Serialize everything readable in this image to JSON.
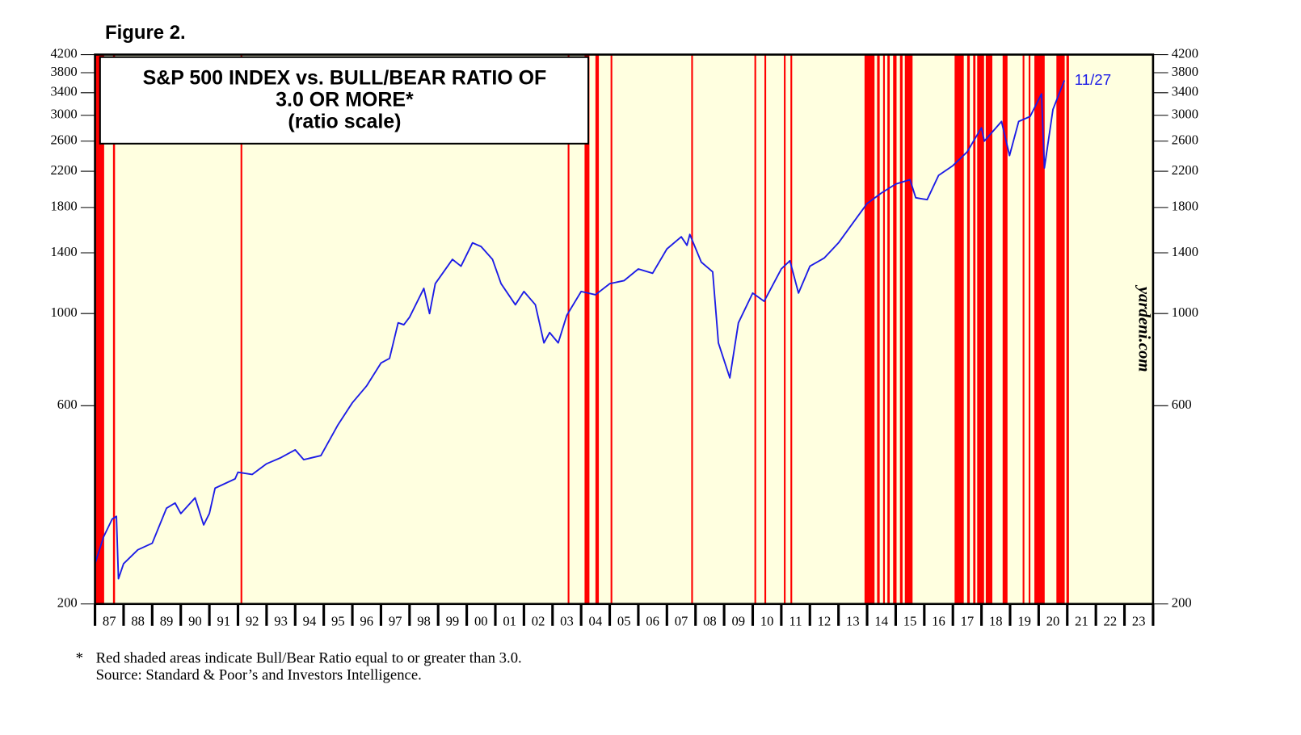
{
  "chart_data": {
    "type": "line",
    "figure_label": "Figure 2.",
    "title": [
      "S&P 500 INDEX vs. BULL/BEAR RATIO OF",
      "3.0 OR MORE*",
      "(ratio scale)"
    ],
    "annotation": "11/27",
    "watermark": "yardeni.com",
    "footnote_marker": "*",
    "footnotes": [
      "Red shaded areas indicate Bull/Bear Ratio equal to or greater than 3.0.",
      "Source: Standard & Poor’s and Investors Intelligence."
    ],
    "log_scale": true,
    "background": "#ffffe0",
    "shade_color": "#ff0000",
    "ylim": [
      200,
      4200
    ],
    "yticks": [
      200,
      600,
      1000,
      1400,
      1800,
      2200,
      2600,
      3000,
      3400,
      3800,
      4200
    ],
    "xlim": [
      1987,
      2024
    ],
    "xticks": [
      1987,
      1988,
      1989,
      1990,
      1991,
      1992,
      1993,
      1994,
      1995,
      1996,
      1997,
      1998,
      1999,
      2000,
      2001,
      2002,
      2003,
      2004,
      2005,
      2006,
      2007,
      2008,
      2009,
      2010,
      2011,
      2012,
      2013,
      2014,
      2015,
      2016,
      2017,
      2018,
      2019,
      2020,
      2021,
      2022,
      2023,
      2024
    ],
    "categories": [
      "87",
      "88",
      "89",
      "90",
      "91",
      "92",
      "93",
      "94",
      "95",
      "96",
      "97",
      "98",
      "99",
      "00",
      "01",
      "02",
      "03",
      "04",
      "05",
      "06",
      "07",
      "08",
      "09",
      "10",
      "11",
      "12",
      "13",
      "14",
      "15",
      "16",
      "17",
      "18",
      "19",
      "20",
      "21",
      "22",
      "23"
    ],
    "shaded": [
      [
        1987.0,
        1987.32
      ],
      [
        1987.63,
        1987.7
      ],
      [
        1992.09,
        1992.15
      ],
      [
        2003.53,
        2003.59
      ],
      [
        2004.12,
        2004.29
      ],
      [
        2004.5,
        2004.62
      ],
      [
        2005.03,
        2005.09
      ],
      [
        2007.85,
        2007.91
      ],
      [
        2010.06,
        2010.12
      ],
      [
        2010.41,
        2010.47
      ],
      [
        2011.09,
        2011.15
      ],
      [
        2011.32,
        2011.38
      ],
      [
        2013.91,
        2014.26
      ],
      [
        2014.35,
        2014.44
      ],
      [
        2014.56,
        2014.62
      ],
      [
        2014.71,
        2014.79
      ],
      [
        2014.91,
        2015.03
      ],
      [
        2015.15,
        2015.24
      ],
      [
        2015.32,
        2015.59
      ],
      [
        2017.06,
        2017.38
      ],
      [
        2017.5,
        2017.59
      ],
      [
        2017.71,
        2017.79
      ],
      [
        2017.85,
        2018.09
      ],
      [
        2018.15,
        2018.38
      ],
      [
        2018.74,
        2018.91
      ],
      [
        2019.44,
        2019.5
      ],
      [
        2019.65,
        2019.71
      ],
      [
        2019.85,
        2020.21
      ],
      [
        2020.62,
        2020.91
      ],
      [
        2020.97,
        2021.06
      ]
    ],
    "series": [
      {
        "name": "S&P 500 Index",
        "color": "#1c1ce6",
        "x": [
          1987.0,
          1987.3,
          1987.6,
          1987.75,
          1987.82,
          1988.0,
          1988.5,
          1989.0,
          1989.5,
          1989.8,
          1990.0,
          1990.5,
          1990.8,
          1991.0,
          1991.2,
          1991.9,
          1992.0,
          1992.5,
          1993.0,
          1993.5,
          1994.0,
          1994.3,
          1994.9,
          1995.5,
          1996.0,
          1996.5,
          1997.0,
          1997.3,
          1997.6,
          1997.8,
          1998.0,
          1998.5,
          1998.7,
          1998.9,
          1999.5,
          1999.8,
          2000.2,
          2000.5,
          2000.9,
          2001.2,
          2001.7,
          2002.0,
          2002.4,
          2002.7,
          2002.9,
          2003.2,
          2003.5,
          2004.0,
          2004.5,
          2005.0,
          2005.5,
          2006.0,
          2006.5,
          2007.0,
          2007.5,
          2007.7,
          2007.8,
          2008.2,
          2008.6,
          2008.8,
          2009.2,
          2009.5,
          2010.0,
          2010.4,
          2011.0,
          2011.3,
          2011.6,
          2012.0,
          2012.5,
          2013.0,
          2013.5,
          2014.0,
          2014.5,
          2015.0,
          2015.5,
          2015.7,
          2016.1,
          2016.5,
          2017.0,
          2017.5,
          2018.0,
          2018.1,
          2018.7,
          2018.98,
          2019.3,
          2019.7,
          2020.1,
          2020.2,
          2020.5,
          2020.9
        ],
        "values": [
          250,
          290,
          320,
          325,
          230,
          250,
          270,
          280,
          340,
          350,
          330,
          360,
          310,
          330,
          380,
          400,
          415,
          410,
          435,
          450,
          470,
          445,
          455,
          540,
          610,
          670,
          760,
          780,
          950,
          940,
          980,
          1150,
          1000,
          1180,
          1350,
          1300,
          1480,
          1450,
          1350,
          1180,
          1050,
          1130,
          1050,
          850,
          900,
          850,
          990,
          1130,
          1110,
          1180,
          1200,
          1280,
          1250,
          1430,
          1530,
          1460,
          1550,
          1330,
          1260,
          850,
          700,
          950,
          1120,
          1070,
          1280,
          1340,
          1120,
          1300,
          1360,
          1480,
          1650,
          1840,
          1950,
          2050,
          2100,
          1900,
          1880,
          2150,
          2270,
          2450,
          2800,
          2600,
          2900,
          2400,
          2900,
          2980,
          3380,
          2240,
          3100,
          3640
        ]
      }
    ]
  }
}
